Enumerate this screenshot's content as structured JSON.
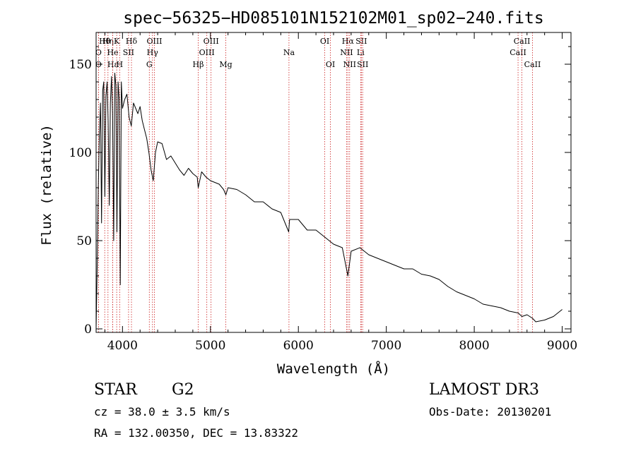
{
  "chart_data": {
    "type": "line",
    "title": "spec−56325−HD085101N152102M01_sp02−240.fits",
    "xlabel": "Wavelength (Å)",
    "ylabel": "Flux (relative)",
    "xlim": [
      3700,
      9100
    ],
    "ylim": [
      -2,
      168
    ],
    "x_ticks": [
      4000,
      5000,
      6000,
      7000,
      8000,
      9000
    ],
    "y_ticks": [
      0,
      50,
      100,
      150
    ],
    "series": [
      {
        "name": "flux",
        "x": [
          3700,
          3712,
          3725,
          3737,
          3750,
          3762,
          3775,
          3787,
          3800,
          3812,
          3825,
          3837,
          3850,
          3862,
          3875,
          3887,
          3900,
          3912,
          3925,
          3937,
          3950,
          3962,
          3975,
          3987,
          4000,
          4025,
          4050,
          4075,
          4100,
          4125,
          4150,
          4175,
          4200,
          4225,
          4250,
          4275,
          4300,
          4325,
          4350,
          4375,
          4400,
          4450,
          4500,
          4550,
          4600,
          4650,
          4700,
          4750,
          4800,
          4850,
          4861,
          4900,
          4950,
          5000,
          5050,
          5100,
          5150,
          5175,
          5200,
          5300,
          5400,
          5500,
          5600,
          5700,
          5800,
          5890,
          5900,
          6000,
          6100,
          6200,
          6300,
          6400,
          6500,
          6563,
          6600,
          6700,
          6800,
          6900,
          7000,
          7100,
          7200,
          7300,
          7400,
          7500,
          7600,
          7700,
          7800,
          7900,
          8000,
          8100,
          8200,
          8300,
          8400,
          8500,
          8542,
          8600,
          8662,
          8700,
          8800,
          8900,
          9000
        ],
        "y": [
          0,
          35,
          80,
          110,
          128,
          60,
          135,
          140,
          75,
          132,
          140,
          118,
          70,
          128,
          143,
          122,
          50,
          145,
          138,
          55,
          140,
          130,
          25,
          140,
          125,
          130,
          133,
          120,
          115,
          128,
          125,
          122,
          126,
          118,
          113,
          108,
          100,
          90,
          84,
          100,
          106,
          105,
          96,
          98,
          94,
          90,
          87,
          91,
          88,
          86,
          80,
          89,
          86,
          84,
          83,
          82,
          79,
          76,
          80,
          79,
          76,
          72,
          72,
          68,
          66,
          55,
          62,
          62,
          56,
          56,
          52,
          48,
          46,
          30,
          44,
          46,
          42,
          40,
          38,
          36,
          34,
          34,
          31,
          30,
          28,
          24,
          21,
          19,
          17,
          14,
          13,
          12,
          10,
          9,
          7,
          8,
          6,
          4,
          5,
          7,
          11
        ]
      }
    ],
    "lines": [
      {
        "label": "Hθ",
        "wavelength": 3798,
        "row": 1
      },
      {
        "label": "O",
        "wavelength": 3727,
        "row": 2
      },
      {
        "label": "O",
        "wavelength": 3727,
        "row": 3
      },
      {
        "label": "Hη",
        "wavelength": 3835,
        "row": 1
      },
      {
        "label": "Hε",
        "wavelength": 3889,
        "row": 3
      },
      {
        "label": "He",
        "wavelength": 3889,
        "row": 2
      },
      {
        "label": "K",
        "wavelength": 3934,
        "row": 1
      },
      {
        "label": "H",
        "wavelength": 3968,
        "row": 3
      },
      {
        "label": "SII",
        "wavelength": 4069,
        "row": 2
      },
      {
        "label": "Hδ",
        "wavelength": 4102,
        "row": 1
      },
      {
        "label": "OIII",
        "wavelength": 4363,
        "row": 1
      },
      {
        "label": "Hγ",
        "wavelength": 4341,
        "row": 2
      },
      {
        "label": "G",
        "wavelength": 4305,
        "row": 3
      },
      {
        "label": "Hβ",
        "wavelength": 4861,
        "row": 3
      },
      {
        "label": "OIII",
        "wavelength": 4959,
        "row": 2
      },
      {
        "label": "OIII",
        "wavelength": 5007,
        "row": 1
      },
      {
        "label": "Mg",
        "wavelength": 5175,
        "row": 3
      },
      {
        "label": "Na",
        "wavelength": 5893,
        "row": 2
      },
      {
        "label": "OI",
        "wavelength": 6300,
        "row": 1
      },
      {
        "label": "OI",
        "wavelength": 6364,
        "row": 3
      },
      {
        "label": "Hα",
        "wavelength": 6563,
        "row": 1
      },
      {
        "label": "NII",
        "wavelength": 6548,
        "row": 2
      },
      {
        "label": "NII",
        "wavelength": 6583,
        "row": 3
      },
      {
        "label": "SII",
        "wavelength": 6716,
        "row": 1
      },
      {
        "label": "Li",
        "wavelength": 6708,
        "row": 2
      },
      {
        "label": "SII",
        "wavelength": 6731,
        "row": 3
      },
      {
        "label": "CaII",
        "wavelength": 8498,
        "row": 2
      },
      {
        "label": "CaII",
        "wavelength": 8542,
        "row": 1
      },
      {
        "label": "CaII",
        "wavelength": 8662,
        "row": 3
      }
    ]
  },
  "info": {
    "object_type": "STAR",
    "subclass": "G2",
    "survey": "LAMOST DR3",
    "cz": "cz = 38.0 ± 3.5 km/s",
    "obs_date": "Obs-Date: 20130201",
    "coords": "RA = 132.00350, DEC =  13.83322"
  },
  "colors": {
    "axis": "#000000",
    "flux_line": "#000000",
    "marker_line": "#cc2222"
  }
}
